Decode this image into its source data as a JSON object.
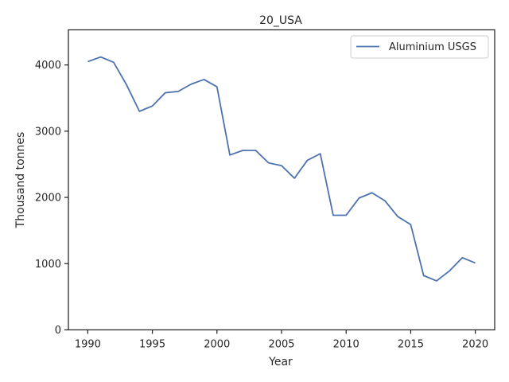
{
  "chart_data": {
    "type": "line",
    "title": "20_USA",
    "xlabel": "Year",
    "ylabel": "Thousand tonnes",
    "xlim": [
      1988.5,
      2021.5
    ],
    "ylim": [
      0,
      4530
    ],
    "xticks": [
      1990,
      1995,
      2000,
      2005,
      2010,
      2015,
      2020
    ],
    "yticks": [
      0,
      1000,
      2000,
      3000,
      4000
    ],
    "grid": false,
    "legend_position": "upper-right",
    "series": [
      {
        "name": "Aluminium USGS",
        "color": "#4c72b0",
        "x": [
          1990,
          1991,
          1992,
          1993,
          1994,
          1995,
          1996,
          1997,
          1998,
          1999,
          2000,
          2001,
          2002,
          2003,
          2004,
          2005,
          2006,
          2007,
          2008,
          2009,
          2010,
          2011,
          2012,
          2013,
          2014,
          2015,
          2016,
          2017,
          2018,
          2019,
          2020
        ],
        "values": [
          4050,
          4120,
          4040,
          3700,
          3300,
          3380,
          3580,
          3600,
          3710,
          3780,
          3670,
          2640,
          2710,
          2710,
          2520,
          2480,
          2290,
          2560,
          2660,
          1730,
          1730,
          1990,
          2070,
          1950,
          1710,
          1590,
          820,
          740,
          890,
          1090,
          1010
        ]
      }
    ]
  }
}
